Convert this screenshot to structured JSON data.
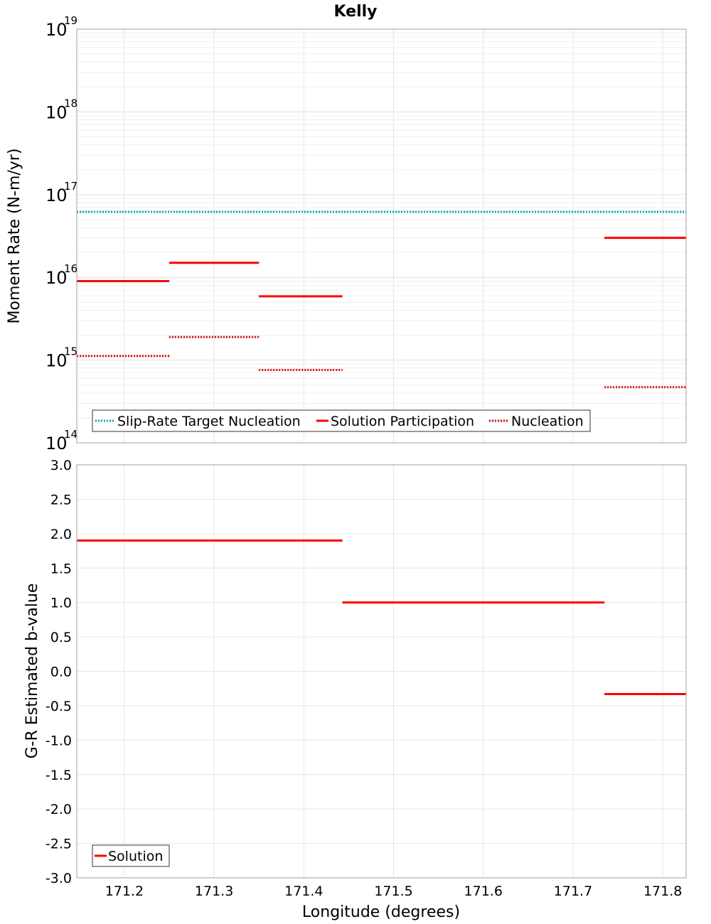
{
  "chart_data": [
    {
      "type": "line",
      "title": "Kelly",
      "ylabel": "Moment Rate (N-m/yr)",
      "yscale": "log",
      "ylim": [
        100000000000000.0,
        1e+19
      ],
      "xlim": [
        171.147,
        171.826
      ],
      "grid": true,
      "legend_position": "bottom-left",
      "ytick_labels": [
        {
          "base": "10",
          "exp": "14",
          "value": 100000000000000.0
        },
        {
          "base": "10",
          "exp": "15",
          "value": 1000000000000000.0
        },
        {
          "base": "10",
          "exp": "16",
          "value": 1e+16
        },
        {
          "base": "10",
          "exp": "17",
          "value": 1e+17
        },
        {
          "base": "10",
          "exp": "18",
          "value": 1e+18
        },
        {
          "base": "10",
          "exp": "19",
          "value": 1e+19
        }
      ],
      "series": [
        {
          "name": "Slip-Rate Target Nucleation",
          "color": "#00B2B2",
          "style": "dotted",
          "segments": [
            {
              "x": [
                171.147,
                171.826
              ],
              "y": 6.2e+16
            }
          ]
        },
        {
          "name": "Solution Participation",
          "color": "#FF0000",
          "style": "solid",
          "segments": [
            {
              "x": [
                171.147,
                171.25
              ],
              "y": 9000000000000000.0
            },
            {
              "x": [
                171.25,
                171.35
              ],
              "y": 1.5e+16
            },
            {
              "x": [
                171.35,
                171.443
              ],
              "y": 5900000000000000.0
            },
            {
              "x": [
                171.735,
                171.826
              ],
              "y": 3e+16
            }
          ]
        },
        {
          "name": "Nucleation",
          "color": "#FF0000",
          "style": "dotted",
          "segments": [
            {
              "x": [
                171.147,
                171.25
              ],
              "y": 1120000000000000.0
            },
            {
              "x": [
                171.25,
                171.35
              ],
              "y": 1900000000000000.0
            },
            {
              "x": [
                171.35,
                171.443
              ],
              "y": 760000000000000.0
            },
            {
              "x": [
                171.735,
                171.826
              ],
              "y": 470000000000000.0
            }
          ]
        }
      ]
    },
    {
      "type": "line",
      "ylabel": "G-R Estimated b-value",
      "xlabel": "Longitude (degrees)",
      "ylim": [
        -3.0,
        3.0
      ],
      "xlim": [
        171.147,
        171.826
      ],
      "grid": true,
      "legend_position": "bottom-left",
      "yticks": [
        "3.0",
        "2.5",
        "2.0",
        "1.5",
        "1.0",
        "0.5",
        "0.0",
        "-0.5",
        "-1.0",
        "-1.5",
        "-2.0",
        "-2.5",
        "-3.0"
      ],
      "xticks": [
        "171.2",
        "171.3",
        "171.4",
        "171.5",
        "171.6",
        "171.7",
        "171.8"
      ],
      "series": [
        {
          "name": "Solution",
          "color": "#FF0000",
          "style": "solid",
          "segments": [
            {
              "x": [
                171.147,
                171.443
              ],
              "y": 1.9
            },
            {
              "x": [
                171.443,
                171.735
              ],
              "y": 1.0
            },
            {
              "x": [
                171.735,
                171.826
              ],
              "y": -0.33
            }
          ]
        }
      ]
    }
  ]
}
